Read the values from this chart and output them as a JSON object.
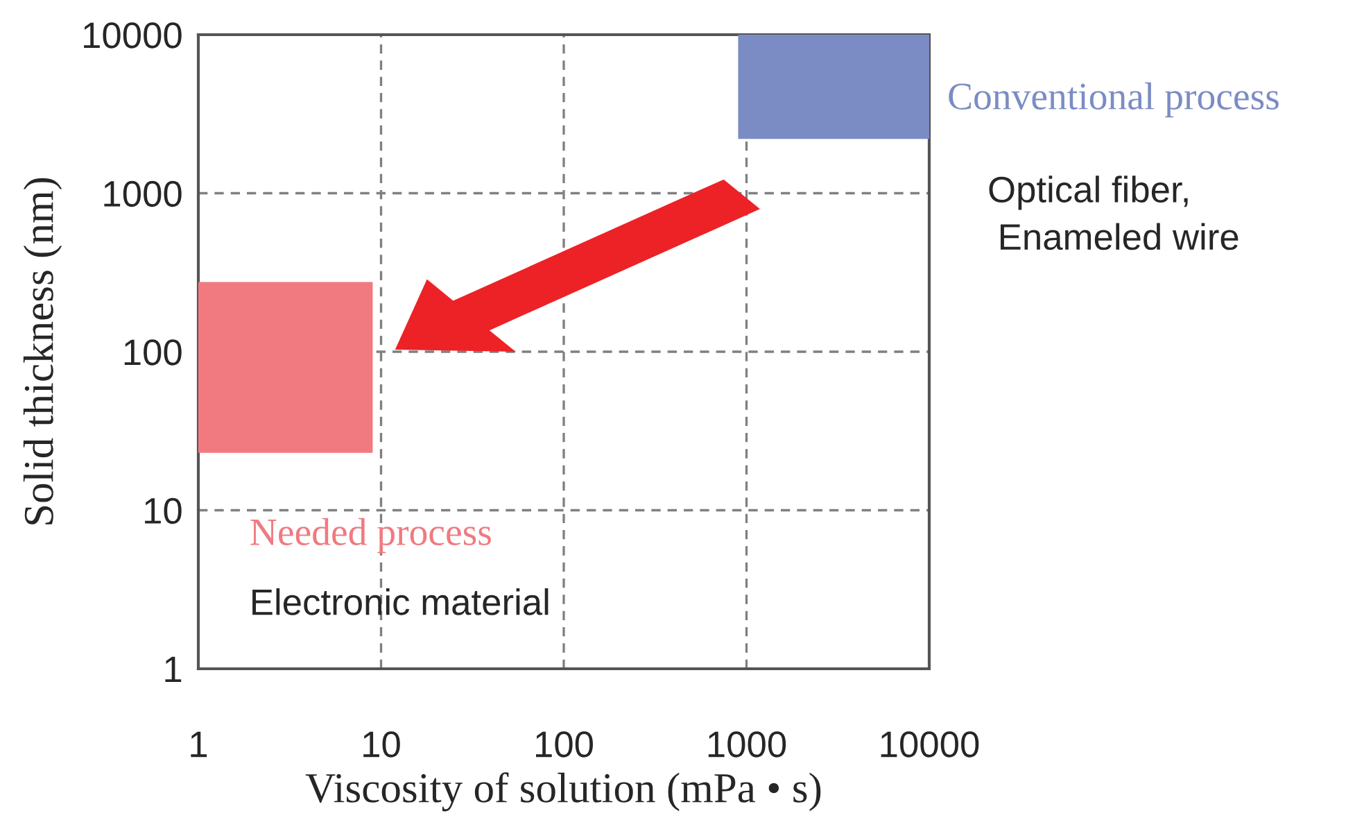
{
  "chart_data": {
    "type": "area",
    "xlabel": "Viscosity of solution (mPa • s)",
    "ylabel": "Solid thickness (nm)",
    "log": "xy",
    "grid": true,
    "legend": false,
    "xlim": [
      1,
      10000
    ],
    "ylim": [
      1,
      10000
    ],
    "xticks": [
      1,
      10,
      100,
      1000,
      10000
    ],
    "yticks": [
      1,
      10,
      100,
      1000,
      10000
    ],
    "series": [
      {
        "name": "Needed process",
        "color": "#f07a80",
        "x": [
          1,
          9
        ],
        "lower": [
          23,
          23
        ],
        "upper": [
          275,
          275
        ],
        "values": [
          null,
          null
        ]
      },
      {
        "name": "Conventional process",
        "color": "#7b8cc4",
        "x": [
          900,
          10000
        ],
        "lower": [
          2200,
          2200
        ],
        "upper": [
          10000,
          10000
        ],
        "values": [
          null,
          null
        ]
      }
    ],
    "annotations": [
      "Electronic material",
      "Optical fiber,\n Enameled wire"
    ]
  }
}
